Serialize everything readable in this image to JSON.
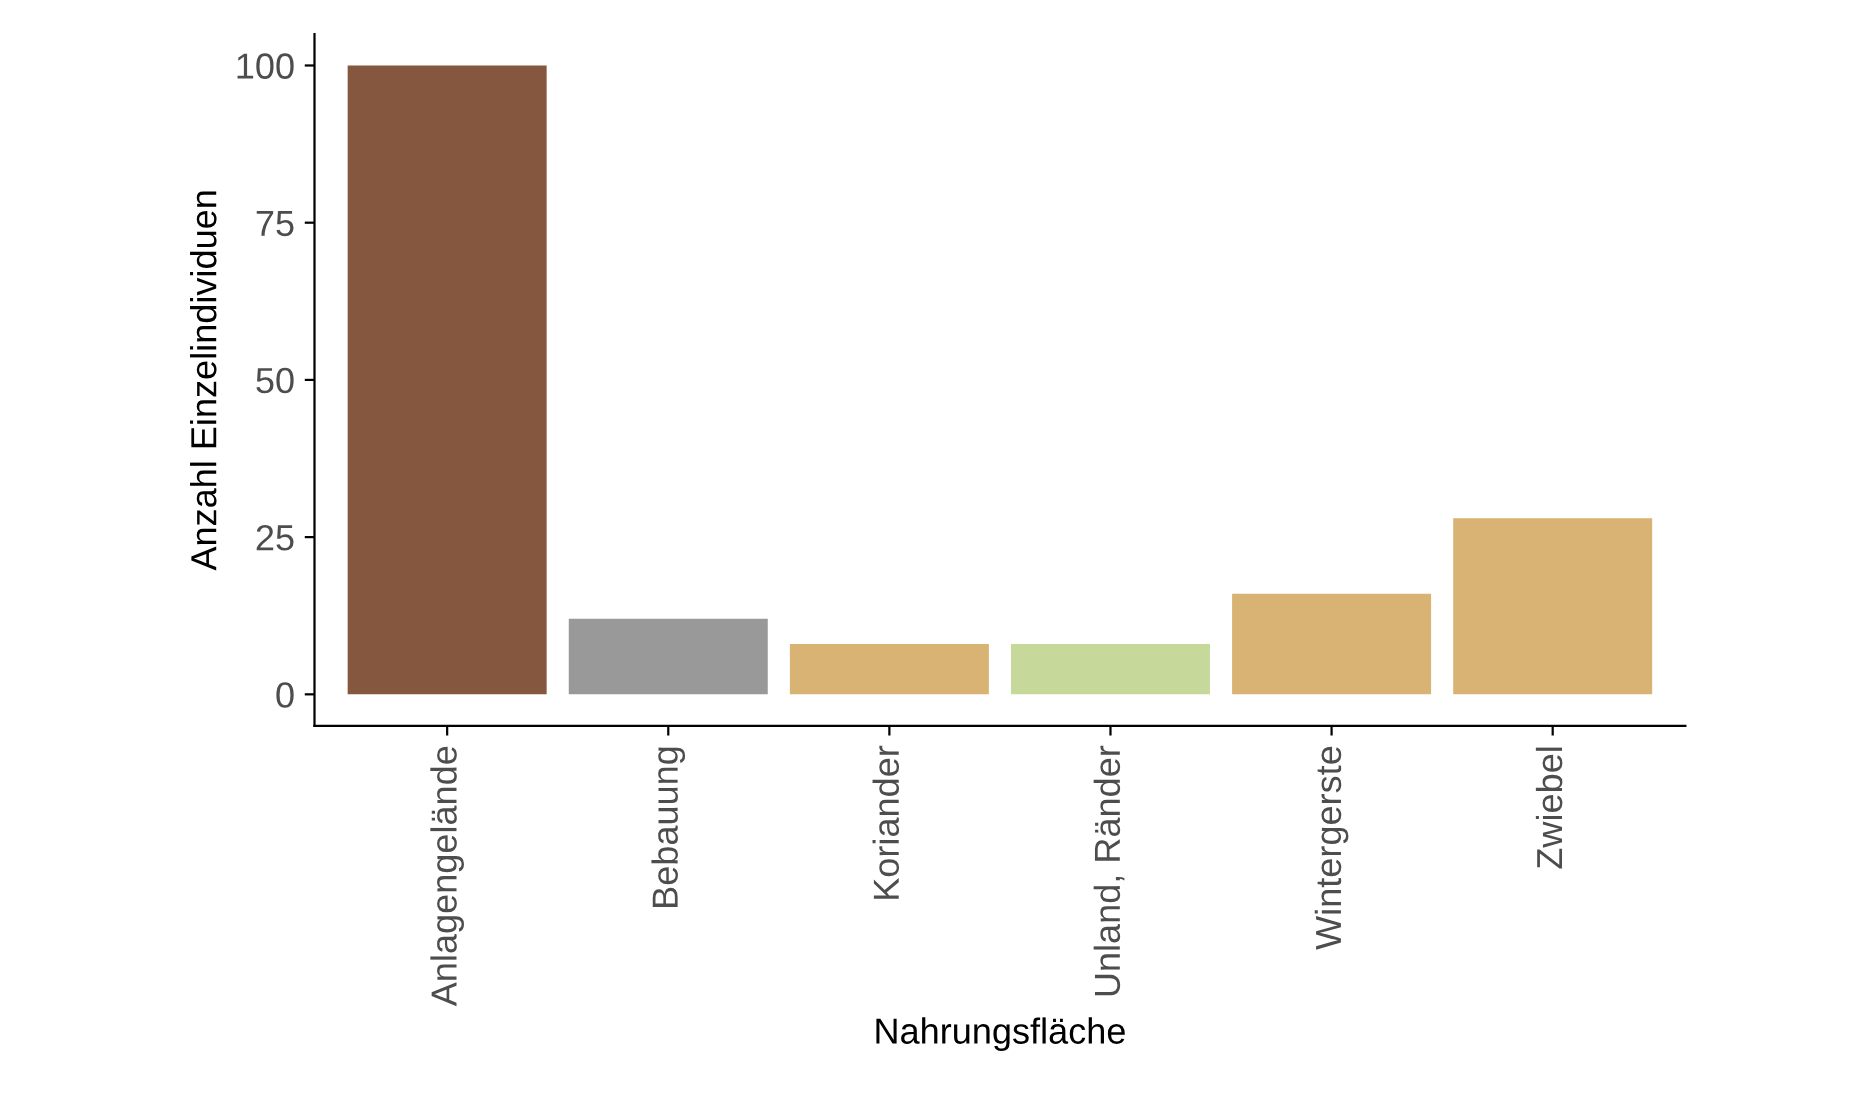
{
  "chart_data": {
    "type": "bar",
    "xlabel": "Nahrungsfläche",
    "ylabel": "Anzahl Einzelindividuen",
    "categories": [
      "Anlagengelände",
      "Bebauung",
      "Koriander",
      "Unland, Ränder",
      "Wintergerste",
      "Zwiebel"
    ],
    "values": [
      100,
      12,
      8,
      8,
      16,
      28
    ],
    "colors": [
      "#85573f",
      "#999999",
      "#d9b373",
      "#c6d99b",
      "#d9b373",
      "#d9b373"
    ],
    "ylim": [
      -5,
      105
    ],
    "yticks": [
      0,
      25,
      50,
      75,
      100
    ],
    "grid": false,
    "legend": false
  }
}
